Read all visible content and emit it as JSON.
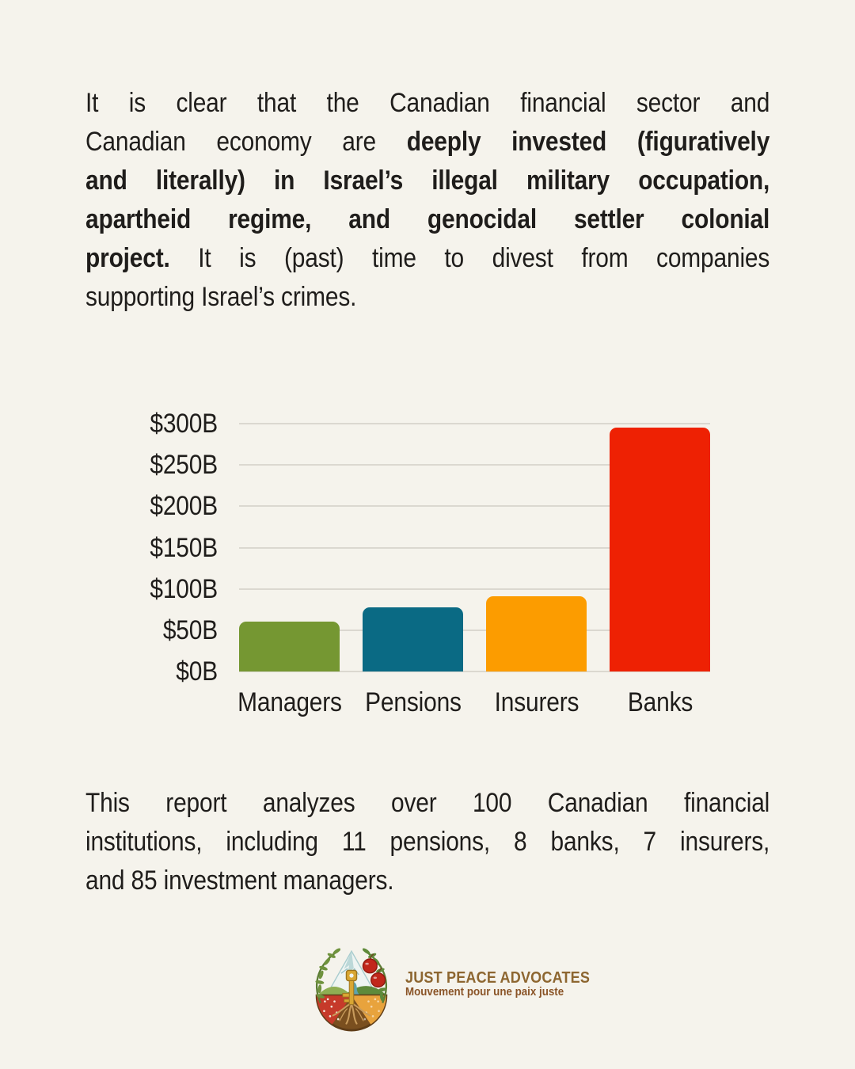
{
  "page": {
    "background": "#f5f3ec",
    "text_color": "#1f1d1b"
  },
  "intro": {
    "lines": [
      {
        "segments": [
          {
            "text": "It is clear that the Canadian financial sector and",
            "bold": false
          }
        ]
      },
      {
        "segments": [
          {
            "text": "Canadian economy are ",
            "bold": false
          },
          {
            "text": "deeply invested (figuratively",
            "bold": true
          }
        ]
      },
      {
        "segments": [
          {
            "text": "and literally) in Israel’s illegal military occupation,",
            "bold": true
          }
        ]
      },
      {
        "segments": [
          {
            "text": "apartheid regime, and genocidal settler colonial",
            "bold": true
          }
        ]
      },
      {
        "segments": [
          {
            "text": "project.",
            "bold": true
          },
          {
            "text": " It is (past) time to divest from companies",
            "bold": false
          }
        ]
      },
      {
        "segments": [
          {
            "text": "supporting Israel’s crimes.",
            "bold": false
          }
        ]
      }
    ]
  },
  "chart_data": {
    "type": "bar",
    "title": "",
    "xlabel": "",
    "ylabel": "",
    "categories": [
      "Managers",
      "Pensions",
      "Insurers",
      "Banks"
    ],
    "values": [
      60,
      78,
      91,
      295
    ],
    "value_unit": "$B",
    "ylim": [
      0,
      300
    ],
    "ytick_step": 50,
    "ytick_labels": [
      "$0B",
      "$50B",
      "$100B",
      "$150B",
      "$200B",
      "$250B",
      "$300B"
    ],
    "grid": true,
    "legend": false,
    "bar_colors": [
      "#759732",
      "#0a6a84",
      "#fc9c00",
      "#ee2103"
    ],
    "gridline_color": "#dbd8d0"
  },
  "closing": {
    "lines": [
      {
        "segments": [
          {
            "text": "This report analyzes over 100 Canadian financial",
            "bold": false
          }
        ]
      },
      {
        "segments": [
          {
            "text": "institutions, including 11 pensions, 8 banks, 7 insurers,",
            "bold": false
          }
        ]
      },
      {
        "segments": [
          {
            "text": "and 85 investment managers.",
            "bold": false
          }
        ]
      }
    ]
  },
  "logo": {
    "name": "JUST PEACE ADVOCATES",
    "tagline": "Mouvement pour une paix juste",
    "name_color": "#8d6630",
    "tagline_color": "#8a5427"
  }
}
